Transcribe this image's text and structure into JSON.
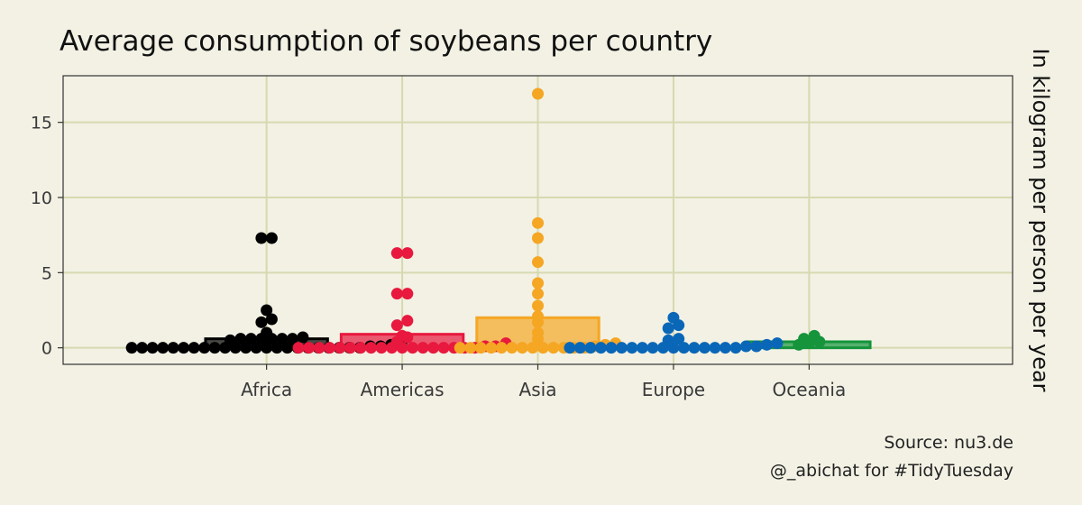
{
  "chart_data": {
    "type": "bar",
    "title": "Average consumption of soybeans per country",
    "ylabel": "In kilogram per person per year",
    "xlabel": "",
    "ylim": [
      -1.1,
      18.1
    ],
    "yticks": [
      0,
      5,
      10,
      15
    ],
    "grid": true,
    "legend": "none",
    "categories": [
      "Africa",
      "Americas",
      "Asia",
      "Europe",
      "Oceania"
    ],
    "values": [
      0.6,
      0.9,
      2.0,
      0.05,
      0.4
    ],
    "colors": [
      "#000000",
      "#e8183e",
      "#f5a623",
      "#0a67b8",
      "#15943c"
    ],
    "points": [
      [
        0,
        0,
        0,
        0,
        0,
        0,
        0,
        0,
        0,
        0,
        0,
        0,
        0,
        0,
        0,
        0,
        0,
        0,
        0,
        0,
        0,
        0,
        0,
        0.1,
        0.1,
        0.2,
        0.3,
        0.5,
        0.6,
        0.6,
        0.6,
        0.6,
        0.6,
        0.6,
        0.7,
        1.0,
        1.7,
        1.9,
        2.5,
        7.3,
        7.3
      ],
      [
        0,
        0,
        0,
        0,
        0,
        0,
        0,
        0,
        0,
        0,
        0,
        0,
        0,
        0,
        0,
        0,
        0,
        0,
        0.1,
        0.1,
        0.3,
        0.4,
        0.7,
        0.8,
        1.5,
        1.8,
        3.6,
        3.6,
        6.3,
        6.3
      ],
      [
        0,
        0,
        0,
        0,
        0,
        0,
        0,
        0,
        0,
        0,
        0,
        0,
        0,
        0.1,
        0.2,
        0.3,
        0.6,
        1.0,
        1.7,
        2.1,
        2.8,
        3.6,
        4.3,
        5.7,
        7.3,
        8.3,
        16.9
      ],
      [
        0,
        0,
        0,
        0,
        0,
        0,
        0,
        0,
        0,
        0,
        0,
        0,
        0,
        0,
        0,
        0,
        0,
        0.1,
        0.1,
        0.2,
        0.3,
        0.5,
        0.6,
        1.3,
        1.5,
        2.0
      ],
      [
        0.2,
        0.3,
        0.4,
        0.6,
        0.8
      ]
    ]
  },
  "caption": {
    "source": "Source: nu3.de",
    "credit": "@_abichat for #TidyTuesday"
  },
  "colors": {
    "background": "#f2f1e4",
    "grid": "#d6d9b0",
    "panel_border": "#333333"
  }
}
